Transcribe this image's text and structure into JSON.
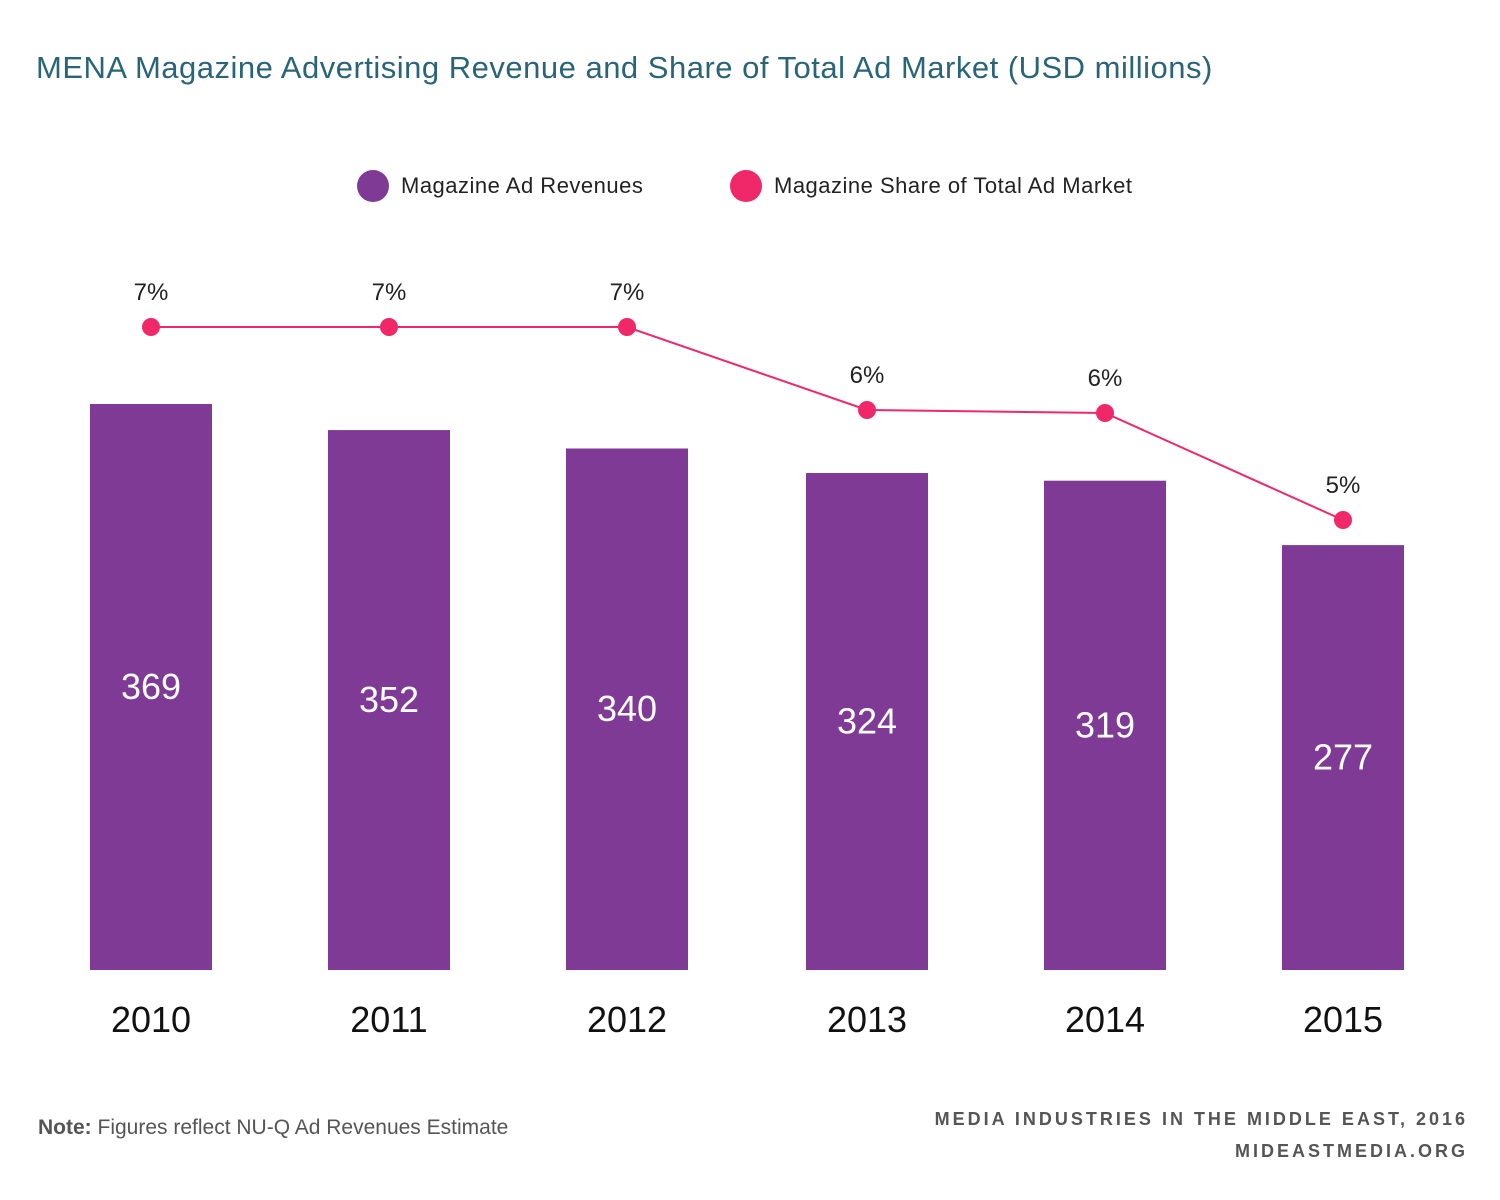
{
  "title": "MENA Magazine Advertising Revenue and Share of Total Ad Market (USD millions)",
  "legend": [
    {
      "label": "Magazine Ad Revenues",
      "color": "#7f3a95"
    },
    {
      "label": "Magazine Share of Total Ad Market",
      "color": "#f0286a"
    }
  ],
  "note": {
    "label": "Note:",
    "text": " Figures reflect NU-Q Ad Revenues Estimate"
  },
  "source": {
    "line1": "MEDIA INDUSTRIES IN THE MIDDLE EAST, 2016",
    "line2": "MIDEASTMEDIA.ORG"
  },
  "chart_data": {
    "type": "bar",
    "title": "MENA Magazine Advertising Revenue and Share of Total Ad Market (USD millions)",
    "categories": [
      "2010",
      "2011",
      "2012",
      "2013",
      "2014",
      "2015"
    ],
    "series": [
      {
        "name": "Magazine Ad Revenues",
        "type": "bar",
        "values": [
          369,
          352,
          340,
          324,
          319,
          277
        ],
        "labels": [
          "369",
          "352",
          "340",
          "324",
          "319",
          "277"
        ],
        "color": "#7f3a95"
      },
      {
        "name": "Magazine Share of Total Ad Market",
        "type": "line",
        "values": [
          7,
          7,
          7,
          6,
          6,
          5
        ],
        "labels": [
          "7%",
          "7%",
          "7%",
          "6%",
          "6%",
          "5%"
        ],
        "color": "#f0286a"
      }
    ],
    "grid": false,
    "legend_position": "top-center"
  }
}
